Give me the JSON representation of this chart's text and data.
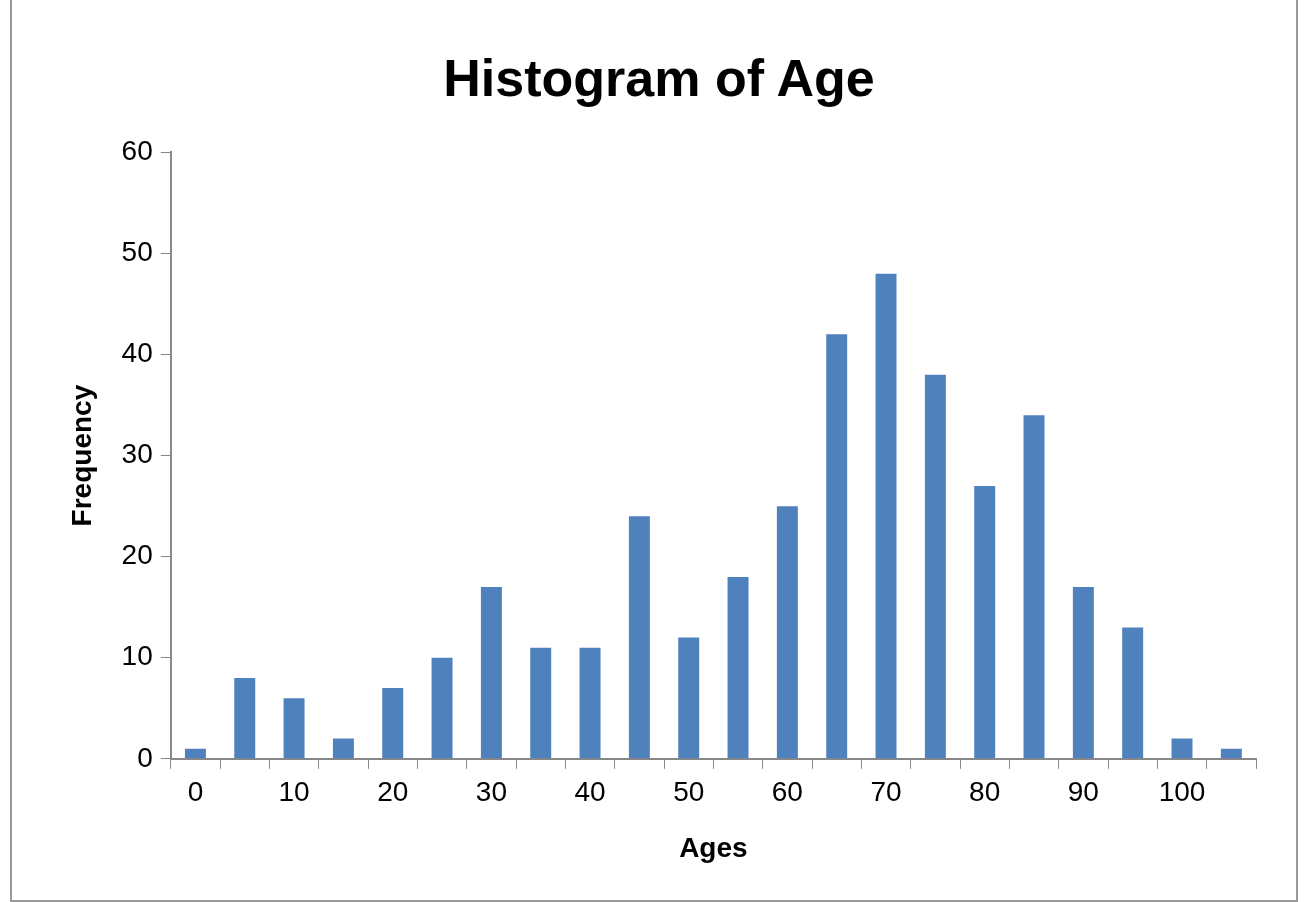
{
  "chart_data": {
    "type": "bar",
    "title": "Histogram of Age",
    "xlabel": "Ages",
    "ylabel": "Frequency",
    "categories": [
      "0",
      null,
      "10",
      null,
      "20",
      null,
      "30",
      null,
      "40",
      null,
      "50",
      null,
      "60",
      null,
      "70",
      null,
      "80",
      null,
      "90",
      null,
      "100",
      null
    ],
    "values": [
      1,
      8,
      6,
      2,
      7,
      10,
      17,
      11,
      11,
      24,
      12,
      18,
      25,
      42,
      48,
      38,
      27,
      34,
      17,
      13,
      2,
      1
    ],
    "color": "#4f81bd",
    "ylim": [
      0,
      60
    ],
    "yticks": [
      0,
      10,
      20,
      30,
      40,
      50,
      60
    ]
  }
}
